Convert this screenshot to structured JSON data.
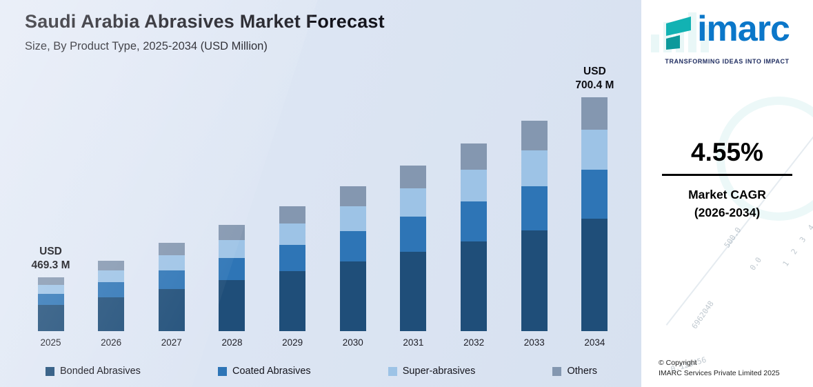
{
  "header": {
    "title": "Saudi Arabia Abrasives Market Forecast",
    "subtitle": "Size, By Product Type, 2025-2034 (USD Million)"
  },
  "chart_data": {
    "type": "bar",
    "stacked": true,
    "title": "Saudi Arabia Abrasives Market Forecast",
    "subtitle": "Size, By Product Type, 2025-2034 (USD Million)",
    "xlabel": "",
    "ylabel": "USD Million",
    "categories": [
      "2025",
      "2026",
      "2027",
      "2028",
      "2029",
      "2030",
      "2031",
      "2032",
      "2033",
      "2034"
    ],
    "series": [
      {
        "name": "Bonded Abrasives",
        "color": "#1f4e79",
        "values": [
          225.3,
          235.5,
          246.2,
          257.4,
          269.1,
          281.4,
          294.2,
          307.6,
          321.6,
          336.2
        ]
      },
      {
        "name": "Coated Abrasives",
        "color": "#2e75b6",
        "values": [
          98.6,
          103.0,
          107.7,
          112.6,
          117.7,
          123.1,
          128.7,
          134.6,
          140.7,
          147.1
        ]
      },
      {
        "name": "Super-abrasives",
        "color": "#9dc3e6",
        "values": [
          79.8,
          83.4,
          87.2,
          91.2,
          95.3,
          99.7,
          104.2,
          108.9,
          113.9,
          119.1
        ]
      },
      {
        "name": "Others",
        "color": "#8497b0",
        "values": [
          65.7,
          68.7,
          71.8,
          75.1,
          78.5,
          82.1,
          85.8,
          89.7,
          93.8,
          98.1
        ]
      }
    ],
    "totals": [
      469.3,
      490.7,
      513.0,
      536.3,
      560.7,
      586.3,
      612.9,
      640.8,
      670.0,
      700.4
    ],
    "annotations": [
      {
        "category": "2025",
        "label": "USD 469.3 M"
      },
      {
        "category": "2034",
        "label": "USD 700.4 M"
      }
    ],
    "ylim": [
      400,
      710
    ],
    "axis_visible": false,
    "grid": false,
    "legend_position": "bottom"
  },
  "sidebar": {
    "logo_text": "imarc",
    "tagline": "TRANSFORMING IDEAS INTO IMPACT",
    "cagr_value": "4.55%",
    "cagr_label_line1": "Market CAGR",
    "cagr_label_line2": "(2026-2034)",
    "copyright_line1": "© Copyright",
    "copyright_line2": "IMARC Services Private Limited 2025",
    "brand_blue": "#0b77c9",
    "accent_teal": "#12b2b3",
    "decorative_numbers": [
      "6962048",
      "0.123456",
      "500.0",
      "0.0",
      "1 2 3 4"
    ]
  }
}
